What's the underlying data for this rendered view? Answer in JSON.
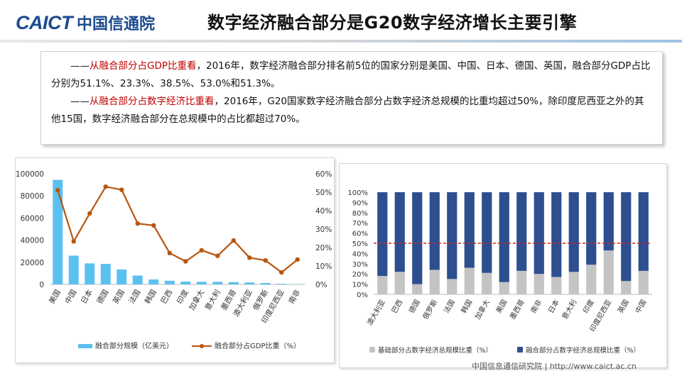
{
  "header": {
    "logo_latin": "CAICT",
    "logo_cn": "中国信通院",
    "title": "数字经济融合部分是G20数字经济增长主要引擎"
  },
  "summary": {
    "p1_lead": "——",
    "p1_highlight": "从融合部分占GDP比重看",
    "p1_rest": "，2016年，数字经济融合部分排名前5位的国家分别是美国、中国、日本、德国、英国，融合部分GDP占比分别为51.1%、23.3%、38.5%、53.0%和51.3%。",
    "p2_lead": "——",
    "p2_highlight": "从融合部分占数字经济比重看",
    "p2_rest": "，2016年，G20国家数字经济融合部分占数字经济总规模的比重均超过50%，除印度尼西亚之外的其他15国，数字经济融合部分在总规模中的占比都超过70%。"
  },
  "footer": {
    "text": "中国信息通信研究院 | http://www.caict.ac.cn"
  },
  "colors": {
    "bar_light_blue": "#5bc0f0",
    "line_brown": "#b8550f",
    "bar_gray": "#c4c4c4",
    "bar_navy": "#2e4f8f",
    "ref_red": "#d42020",
    "logo_blue": "#1b4a8f"
  },
  "chart_data": [
    {
      "type": "bar",
      "combo": "bar+line",
      "categories": [
        "美国",
        "中国",
        "日本",
        "德国",
        "英国",
        "法国",
        "韩国",
        "巴西",
        "印度",
        "加拿大",
        "意大利",
        "墨西哥",
        "澳大利亚",
        "俄罗斯",
        "印度尼西亚",
        "南非"
      ],
      "series": [
        {
          "name": "融合部分规模（亿美元）",
          "kind": "bar",
          "axis": "left",
          "values": [
            94500,
            26000,
            19000,
            18500,
            13500,
            8000,
            4500,
            3300,
            2500,
            2400,
            2400,
            2100,
            1800,
            1300,
            600,
            250
          ]
        },
        {
          "name": "融合部分占GDP比重（%）",
          "kind": "line",
          "axis": "right",
          "values": [
            51.1,
            23.3,
            38.5,
            53.0,
            51.3,
            33.0,
            32.0,
            17.0,
            12.5,
            18.5,
            15.5,
            23.8,
            14.5,
            13.0,
            6.5,
            13.5
          ]
        }
      ],
      "y_left": {
        "min": 0,
        "max": 100000,
        "ticks": [
          "0",
          "20000",
          "40000",
          "60000",
          "80000",
          "100000"
        ]
      },
      "y_right": {
        "min": 0,
        "max": 60,
        "ticks": [
          "0%",
          "10%",
          "20%",
          "30%",
          "40%",
          "50%",
          "60%"
        ]
      },
      "legend": [
        "融合部分规模（亿美元）",
        "融合部分占GDP比重（%）"
      ]
    },
    {
      "type": "bar",
      "stacked": true,
      "categories": [
        "澳大利亚",
        "巴西",
        "德国",
        "俄罗斯",
        "法国",
        "韩国",
        "加拿大",
        "美国",
        "墨西哥",
        "南非",
        "日本",
        "意大利",
        "印度",
        "印度尼西亚",
        "英国",
        "中国"
      ],
      "series": [
        {
          "name": "基础部分占数字经济总规模比重（%）",
          "values": [
            18,
            22,
            10,
            24,
            15,
            26,
            21,
            12,
            23,
            20,
            17,
            22,
            29,
            43,
            13,
            23
          ]
        },
        {
          "name": "融合部分占数字经济总规模比重（%）",
          "values": [
            82,
            78,
            90,
            76,
            85,
            74,
            79,
            88,
            77,
            80,
            83,
            78,
            71,
            57,
            87,
            77
          ]
        }
      ],
      "reference_line": {
        "value": 50,
        "style": "dashed"
      },
      "y": {
        "min": 0,
        "max": 100,
        "ticks": [
          "0%",
          "10%",
          "20%",
          "30%",
          "40%",
          "50%",
          "60%",
          "70%",
          "80%",
          "90%",
          "100%"
        ]
      },
      "legend": [
        "基础部分占数字经济总规模比重（%）",
        "融合部分占数字经济总规模比重（%）"
      ]
    }
  ]
}
